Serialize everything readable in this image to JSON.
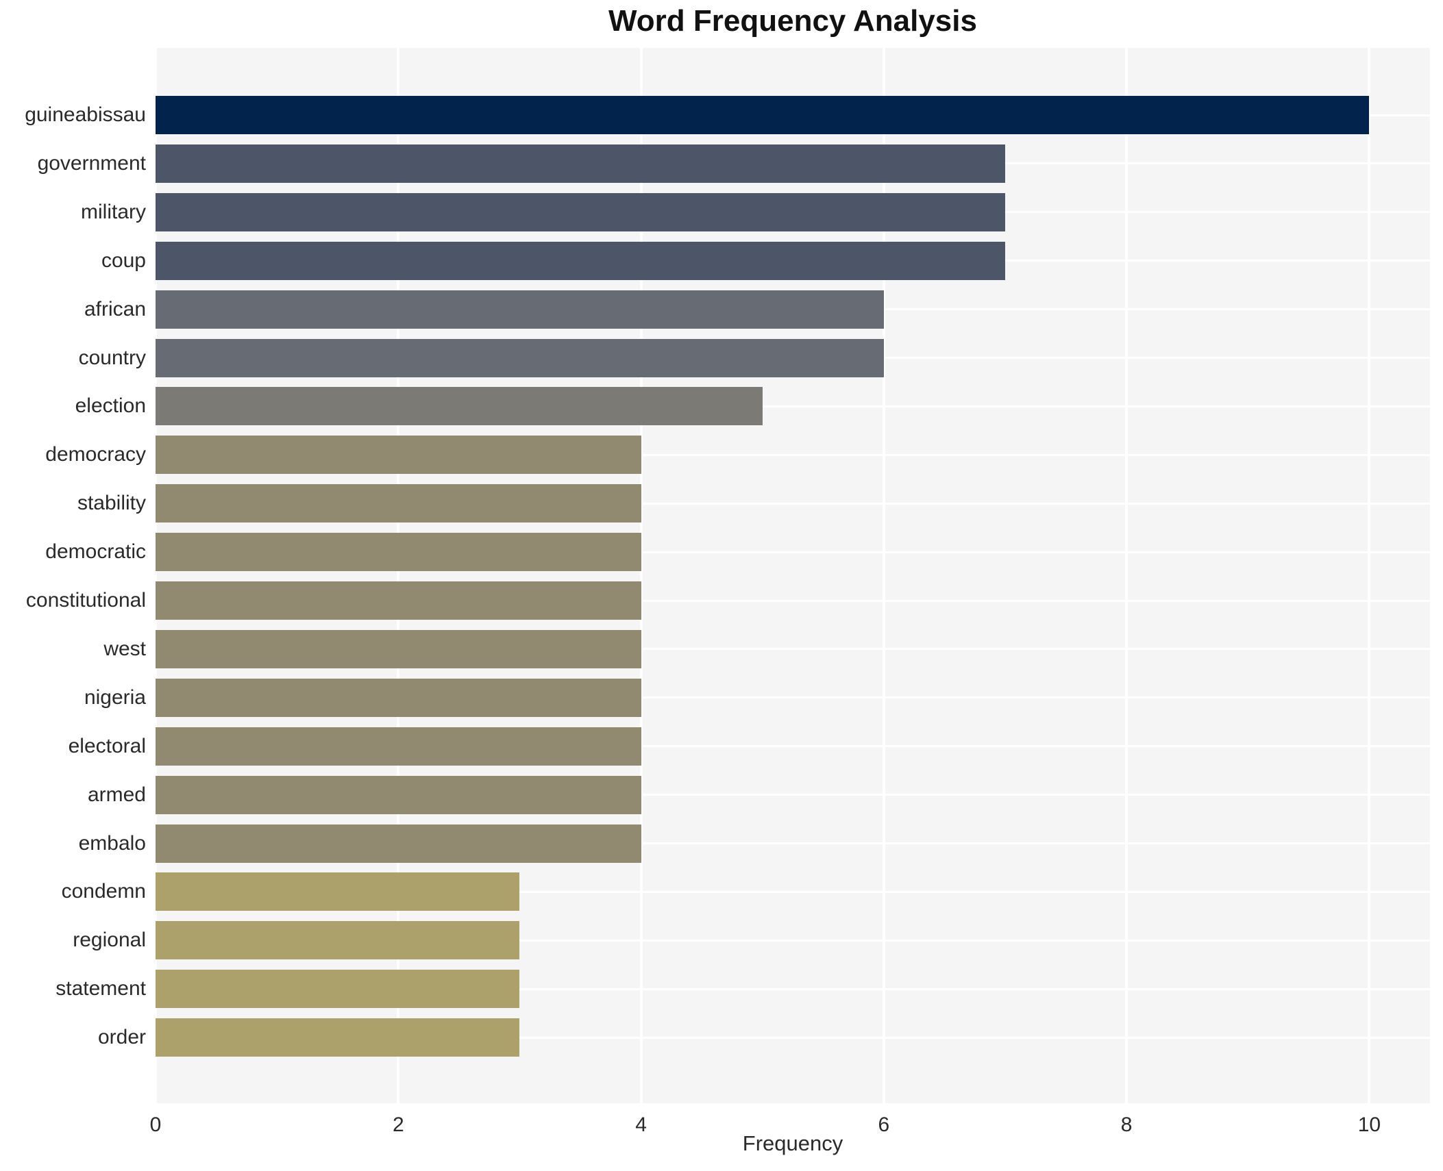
{
  "title": "Word Frequency Analysis",
  "chart_data": {
    "type": "bar",
    "orientation": "horizontal",
    "title": "Word Frequency Analysis",
    "xlabel": "Frequency",
    "ylabel": "",
    "categories": [
      "guineabissau",
      "government",
      "military",
      "coup",
      "african",
      "country",
      "election",
      "democracy",
      "stability",
      "democratic",
      "constitutional",
      "west",
      "nigeria",
      "electoral",
      "armed",
      "embalo",
      "condemn",
      "regional",
      "statement",
      "order"
    ],
    "values": [
      10,
      7,
      7,
      7,
      6,
      6,
      5,
      4,
      4,
      4,
      4,
      4,
      4,
      4,
      4,
      4,
      3,
      3,
      3,
      3
    ],
    "xlim": [
      0,
      10.5
    ],
    "xticks": [
      0,
      2,
      4,
      6,
      8,
      10
    ],
    "xtick_labels": [
      "0",
      "2",
      "4",
      "6",
      "8",
      "10"
    ],
    "grid": true,
    "legend": "none",
    "colors": {
      "plot_background": "#f5f5f6",
      "grid_line": "#ffffff",
      "title_text": "#111111",
      "tick_text": "#2a2a2a",
      "bar_color_by_value": {
        "10": "#02234c",
        "7": "#4d5569",
        "6": "#676b73",
        "5": "#7b7a74",
        "4": "#918a70",
        "3": "#aca16b"
      }
    }
  }
}
